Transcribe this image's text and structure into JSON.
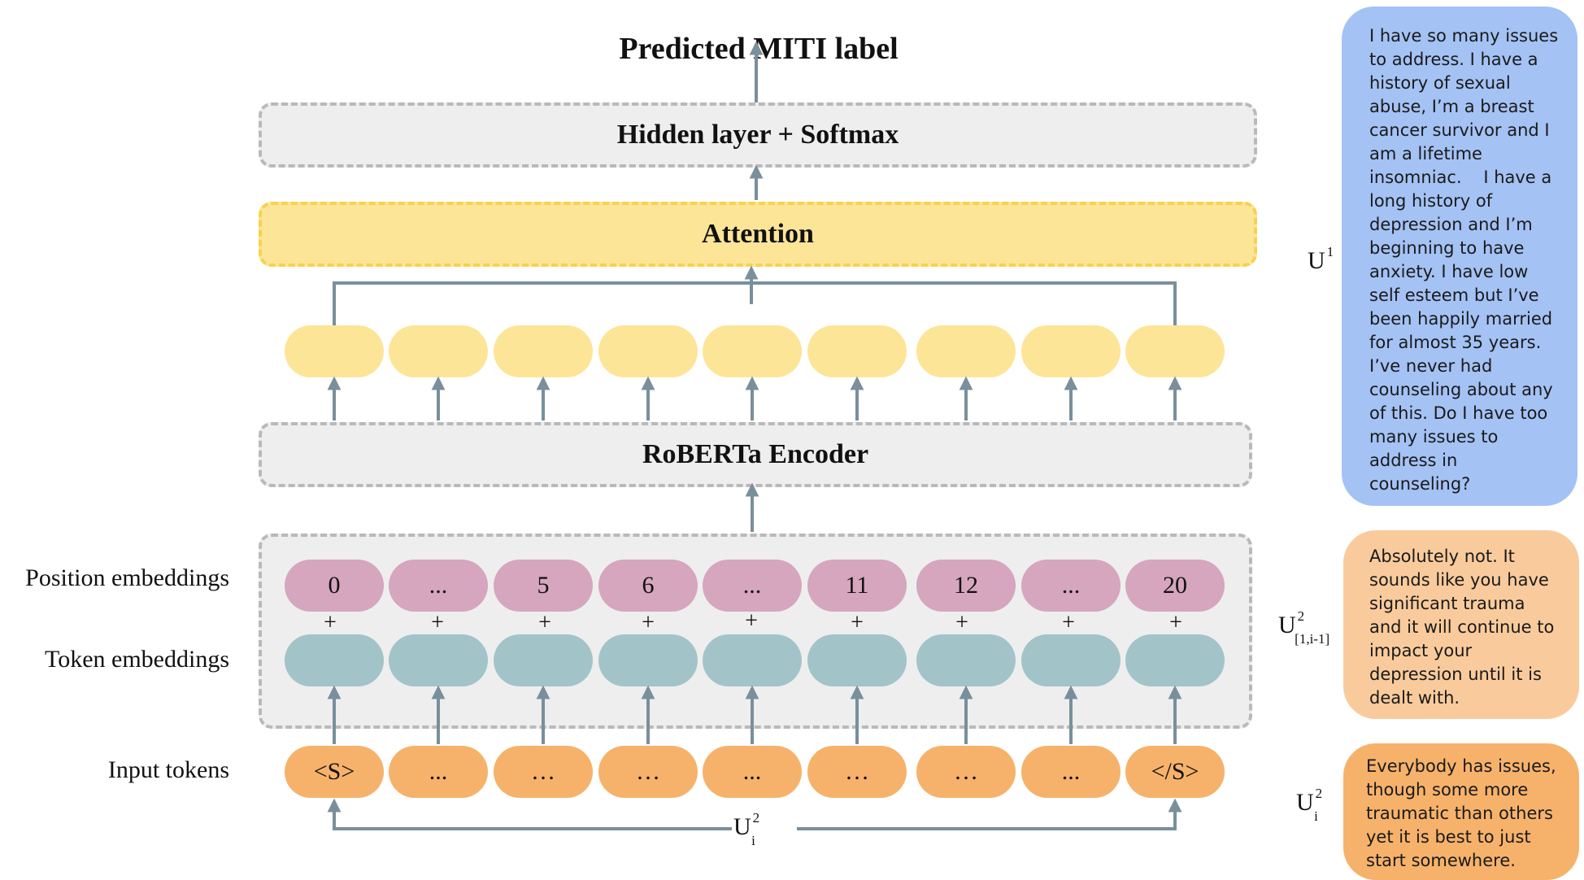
{
  "title": "Predicted MITI label",
  "layers": {
    "hidden_softmax": "Hidden layer + Softmax",
    "attention": "Attention",
    "encoder": "RoBERTa Encoder"
  },
  "row_labels": {
    "position": "Position embeddings",
    "token": "Token embeddings",
    "input": "Input tokens"
  },
  "position_ids": [
    "0",
    "...",
    "5",
    "6",
    "...",
    "11",
    "12",
    "...",
    "20"
  ],
  "plus_sign": "+",
  "input_tokens": [
    "<S>",
    "...",
    "…",
    "…",
    "...",
    "…",
    "…",
    "...",
    "</S>"
  ],
  "utterance_labels": {
    "u1": {
      "base": "U",
      "sup": "1",
      "sub": ""
    },
    "u2_context": {
      "base": "U",
      "sup": "2",
      "sub": "[1,i-1]"
    },
    "u2_current": {
      "base": "U",
      "sup": "2",
      "sub": "i"
    },
    "bottom": {
      "base": "U",
      "sup": "2",
      "sub": "i"
    }
  },
  "bubbles": {
    "u1_lines": [
      "I have so many issues",
      "to address. I have a",
      "history of sexual",
      "abuse, I’m a breast",
      "cancer survivor and I",
      "am a lifetime",
      "insomniac.    I have a",
      "long history of",
      "depression and I’m",
      "beginning to have",
      "anxiety. I have low",
      "self esteem but I’ve",
      "been happily married",
      "for almost 35 years.",
      "I’ve never had",
      "counseling about any",
      "of this. Do I have too",
      "many issues to",
      "address in",
      "counseling?"
    ],
    "u2_context_lines": [
      "Absolutely not. It",
      "sounds like you have",
      "significant trauma",
      "and it will continue to",
      "impact your",
      "depression until it is",
      "dealt with."
    ],
    "u2_current_lines": [
      "Everybody has issues,",
      "though some more",
      "traumatic than others",
      "yet it is best to just",
      "start somewhere."
    ]
  },
  "colors": {
    "arrow": "#7a8f9c",
    "hidden_state": "#fde598",
    "position_embedding": "#d5a6bd",
    "token_embedding": "#a2c4c9",
    "input_token": "#f6b26b",
    "bubble_u1": "#a4c2f4",
    "bubble_u2_context": "#f9cb9c",
    "bubble_u2_current": "#f6b26b"
  }
}
